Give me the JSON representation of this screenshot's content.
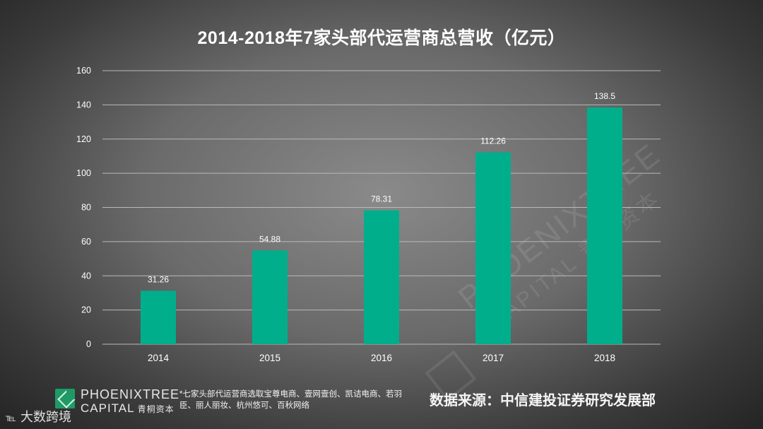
{
  "title": "2014-2018年7家头部代运营商总营收（亿元）",
  "chart_data": {
    "type": "bar",
    "title": "2014-2018年7家头部代运营商总营收（亿元）",
    "categories": [
      "2014",
      "2015",
      "2016",
      "2017",
      "2018"
    ],
    "values": [
      31.26,
      54.88,
      78.31,
      112.26,
      138.5
    ],
    "value_labels": [
      "31.26",
      "54.88",
      "78.31",
      "112.26",
      "138.5"
    ],
    "xlabel": "",
    "ylabel": "",
    "ylim": [
      0,
      160
    ],
    "yticks": [
      0,
      20,
      40,
      60,
      80,
      100,
      120,
      140,
      160
    ],
    "grid": true,
    "legend": "none",
    "bar_color": "#00ae8c"
  },
  "footer": {
    "logo_line1": "PHOENIXTREE",
    "logo_line2": "CAPITAL",
    "logo_cn": "青桐资本",
    "footnote": "*七家头部代运营商选取宝尊电商、壹网壹创、凯诘电商、若羽臣、丽人丽妆、杭州悠可、百秋网络",
    "source": "数据来源：中信建投证券研究发展部",
    "brand_icon": "℡",
    "brand": "大数跨境"
  },
  "watermark": {
    "line1": "PHOENIXTREE",
    "line2": "CAPITAL 青桐资本"
  },
  "colors": {
    "bar": "#00ae8c",
    "grid": "#b9b9b9",
    "axis_text": "#ffffff"
  }
}
